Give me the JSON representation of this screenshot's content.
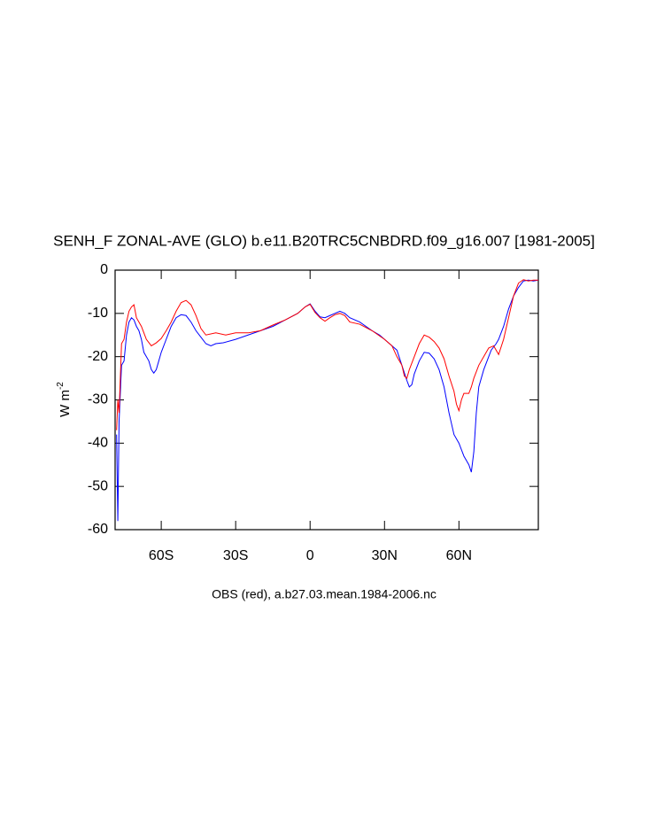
{
  "chart_data": {
    "type": "line",
    "title": "SENH_F ZONAL-AVE (GLO) b.e11.B20TRC5CNBDRD.f09_g16.007 [1981-2005]",
    "subtitle": "OBS (red), a.b27.03.mean.1984-2006.nc",
    "y_label": {
      "text": "W m",
      "superscript": "-2"
    },
    "xlim": [
      -78.6,
      92
    ],
    "ylim": [
      -60,
      0
    ],
    "xticks": [
      {
        "value": -60,
        "label": "60S"
      },
      {
        "value": -30,
        "label": "30S"
      },
      0,
      {
        "value": 30,
        "label": "30N"
      },
      {
        "value": 60,
        "label": "60N"
      }
    ],
    "yticks": [
      0,
      -10,
      -20,
      -30,
      -40,
      -50,
      -60
    ],
    "series": [
      {
        "color": "#0000ff",
        "x": [
          -78,
          -77.5,
          -77,
          -76,
          -75,
          -74,
          -73,
          -72,
          -71,
          -70,
          -69,
          -68,
          -67,
          -66,
          -65,
          -64,
          -63,
          -62,
          -61,
          -60,
          -58,
          -56,
          -54,
          -52,
          -50,
          -48,
          -46,
          -44,
          -42,
          -40,
          -38,
          -35,
          -30,
          -25,
          -20,
          -15,
          -10,
          -5,
          -2,
          0,
          2,
          4,
          6,
          8,
          10,
          12,
          14,
          16,
          20,
          25,
          28,
          32,
          35,
          37,
          39,
          40,
          41,
          42,
          44,
          46,
          48,
          50,
          52,
          54,
          56,
          58,
          60,
          62,
          64,
          65,
          66,
          67,
          68,
          70,
          72,
          73,
          75,
          76,
          78,
          80,
          82,
          84,
          86,
          88,
          90,
          92
        ],
        "values": [
          -38,
          -58,
          -35,
          -22,
          -21,
          -15,
          -12,
          -11,
          -11.5,
          -13,
          -14,
          -16,
          -19,
          -20,
          -21,
          -23,
          -23.8,
          -23,
          -21,
          -19,
          -16,
          -13,
          -11,
          -10.3,
          -10.5,
          -12,
          -14,
          -15.5,
          -17,
          -17.5,
          -17,
          -16.8,
          -16,
          -15,
          -14,
          -13,
          -11.5,
          -10,
          -8.5,
          -7.8,
          -9.5,
          -10.8,
          -11,
          -10.5,
          -10,
          -9.5,
          -10,
          -11,
          -12,
          -14,
          -15,
          -17,
          -18.5,
          -22,
          -25.5,
          -27,
          -26.5,
          -24,
          -21,
          -19,
          -19.2,
          -20.5,
          -23,
          -27,
          -33,
          -38,
          -40,
          -43,
          -45,
          -46.7,
          -42,
          -33,
          -27,
          -23,
          -20,
          -18.5,
          -17,
          -16,
          -13,
          -9,
          -6,
          -4,
          -2.5,
          -2.3,
          -2.5,
          -2.3
        ]
      },
      {
        "color": "#ff0000",
        "x": [
          -78,
          -77.5,
          -77,
          -76,
          -75,
          -74,
          -73,
          -72,
          -71,
          -70,
          -68,
          -66,
          -64,
          -62,
          -60,
          -58,
          -56,
          -54,
          -52,
          -50,
          -48,
          -46,
          -44,
          -42,
          -38,
          -34,
          -30,
          -25,
          -20,
          -15,
          -10,
          -5,
          -2,
          0,
          2,
          4,
          6,
          8,
          10,
          12,
          14,
          16,
          20,
          25,
          30,
          33,
          35,
          37,
          38,
          39,
          40,
          42,
          44,
          46,
          48,
          50,
          52,
          54,
          56,
          58,
          59,
          60,
          61,
          62,
          64,
          65,
          66,
          68,
          70,
          72,
          74,
          76,
          78,
          80,
          82,
          84,
          86,
          88,
          90,
          92
        ],
        "values": [
          -37,
          -30,
          -33,
          -17,
          -16,
          -12,
          -9.5,
          -8.5,
          -8,
          -11,
          -13,
          -16,
          -17.5,
          -16.8,
          -15.8,
          -14,
          -12,
          -9.5,
          -7.5,
          -7,
          -8,
          -10.5,
          -13.5,
          -15,
          -14.5,
          -15,
          -14.5,
          -14.5,
          -14,
          -12.7,
          -11.5,
          -10,
          -8.5,
          -7.9,
          -9.8,
          -11,
          -11.8,
          -11,
          -10.3,
          -10,
          -10.5,
          -12,
          -12.5,
          -14,
          -16,
          -17.5,
          -20,
          -22,
          -24.5,
          -25,
          -23,
          -20,
          -17,
          -15,
          -15.5,
          -16.5,
          -18,
          -20.5,
          -24.5,
          -28,
          -31,
          -32.5,
          -30,
          -28.5,
          -28.5,
          -27,
          -25,
          -22,
          -20,
          -18,
          -17.5,
          -19.5,
          -16,
          -11,
          -6,
          -3,
          -2.2,
          -2.5,
          -2.3,
          -2.3
        ]
      }
    ]
  }
}
